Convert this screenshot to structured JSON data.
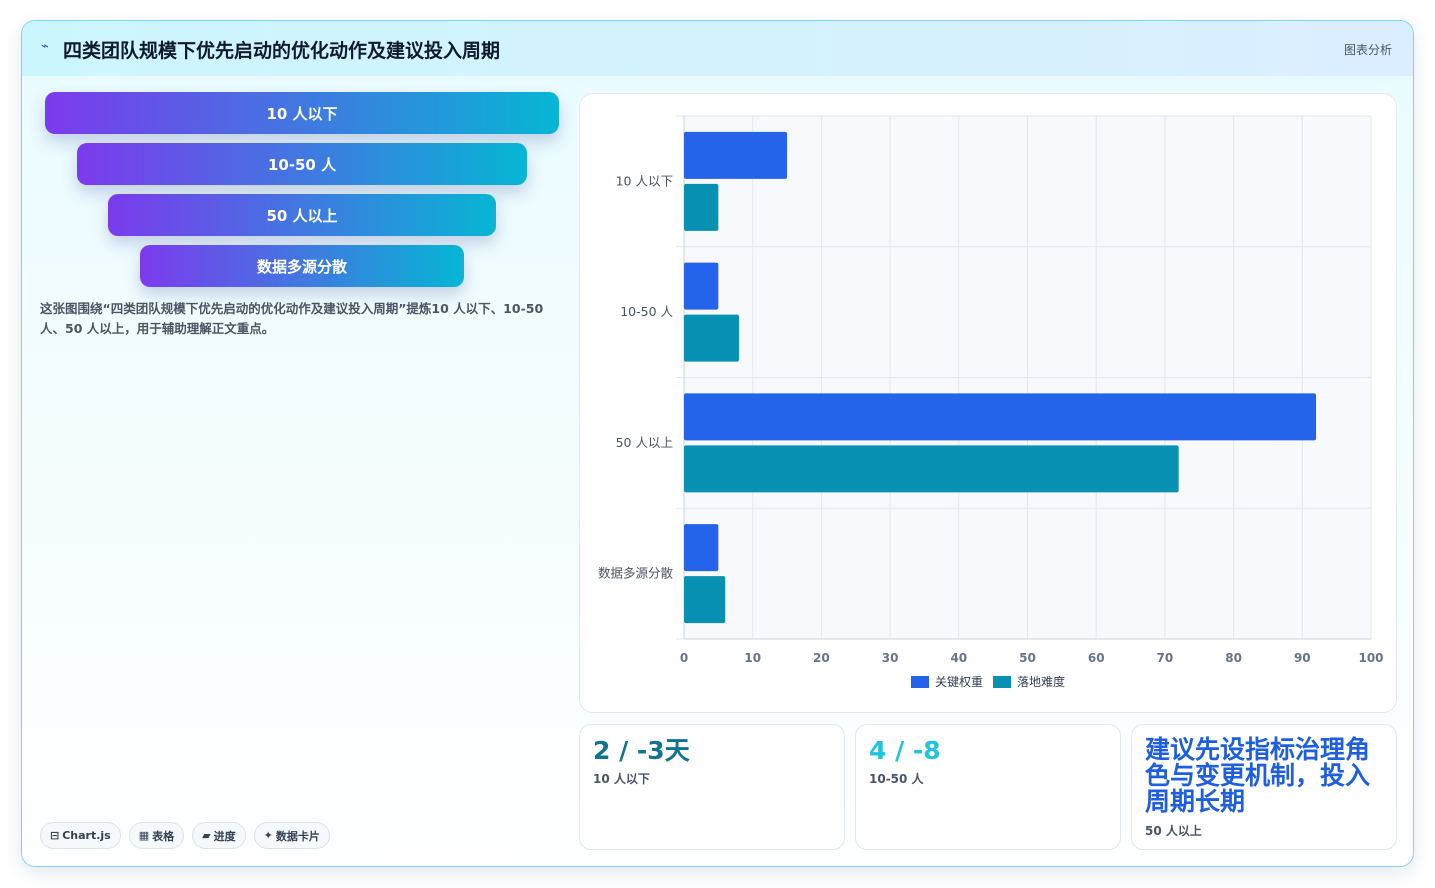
{
  "header": {
    "icon": "trend-icon",
    "title": "四类团队规模下优先启动的优化动作及建议投入周期",
    "badge": "图表分析"
  },
  "funnel": {
    "items": [
      {
        "label": "10 人以下"
      },
      {
        "label": "10-50 人"
      },
      {
        "label": "50 人以上"
      },
      {
        "label": "数据多源分散"
      }
    ]
  },
  "description": "这张图围绕“四类团队规模下优先启动的优化动作及建议投入周期”提炼10 人以下、10-50 人、50 人以上，用于辅助理解正文重点。",
  "tags": [
    {
      "icon": "chart-icon",
      "glyph": "⊟",
      "label": "Chart.js"
    },
    {
      "icon": "table-icon",
      "glyph": "▦",
      "label": "表格"
    },
    {
      "icon": "progress-icon",
      "glyph": "▰",
      "label": "进度"
    },
    {
      "icon": "sparkle-icon",
      "glyph": "✦",
      "label": "数据卡片"
    }
  ],
  "chart_data": {
    "type": "bar",
    "orientation": "horizontal",
    "categories": [
      "10 人以下",
      "10-50 人",
      "50 人以上",
      "数据多源分散"
    ],
    "series": [
      {
        "name": "关键权重",
        "values": [
          15,
          5,
          92,
          5
        ],
        "color": "#2563eb"
      },
      {
        "name": "落地难度",
        "values": [
          5,
          8,
          72,
          6
        ],
        "color": "#0891b2"
      }
    ],
    "xlim": [
      0,
      100
    ],
    "xticks": [
      "0",
      "10",
      "20",
      "30",
      "40",
      "50",
      "60",
      "70",
      "80",
      "90",
      "100"
    ],
    "grid": true,
    "legend": "bottom-center"
  },
  "stats": [
    {
      "value": "2 / -3天",
      "label": "10 人以下",
      "color": "#0e7490"
    },
    {
      "value": "4 / -8",
      "label": "10-50 人",
      "color": "#22c3dc"
    },
    {
      "value": "建议先设指标治理角色与变更机制，投入周期长期",
      "label": "50 人以上",
      "color": "#1d5fe0"
    }
  ]
}
